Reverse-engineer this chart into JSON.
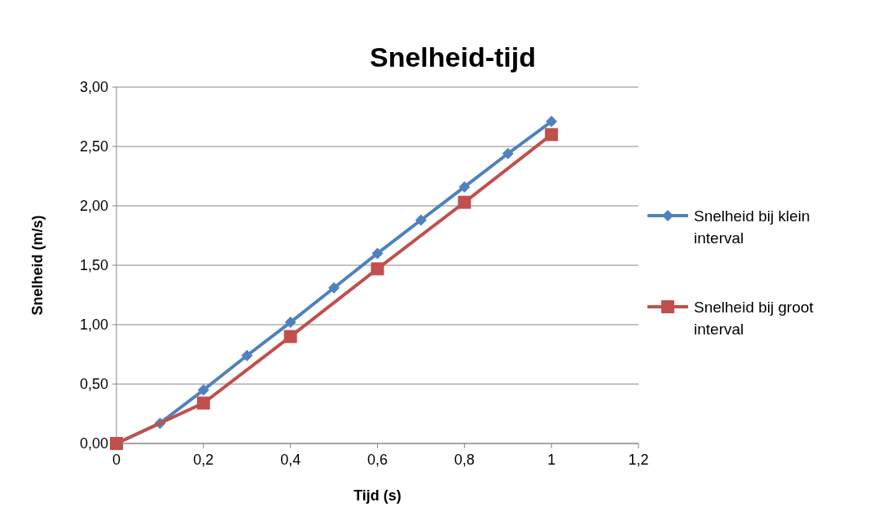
{
  "chart_data": {
    "type": "line",
    "title": "Snelheid-tijd",
    "xlabel": "Tijd (s)",
    "ylabel": "Snelheid (m/s)",
    "xlim": [
      0,
      1.2
    ],
    "xticks": [
      0,
      {
        "value": 0.2,
        "label": "0,2"
      },
      {
        "value": 0.4,
        "label": "0,4"
      },
      {
        "value": 0.6,
        "label": "0,6"
      },
      {
        "value": 0.8,
        "label": "0,8"
      },
      1,
      {
        "value": 1.2,
        "label": "1,2"
      }
    ],
    "ylim": [
      0,
      3
    ],
    "yticks": [
      {
        "value": 0,
        "label": "0,00"
      },
      {
        "value": 0.5,
        "label": "0,50"
      },
      {
        "value": 1,
        "label": "1,00"
      },
      {
        "value": 1.5,
        "label": "1,50"
      },
      {
        "value": 2,
        "label": "2,00"
      },
      {
        "value": 2.5,
        "label": "2,50"
      },
      {
        "value": 3,
        "label": "3,00"
      }
    ],
    "grid": "y",
    "legend": "right",
    "series": [
      {
        "name": "Snelheid bij klein interval",
        "color": "#4f81bd",
        "marker": "diamond",
        "x": [
          0,
          0.1,
          0.2,
          0.3,
          0.4,
          0.5,
          0.6,
          0.7,
          0.8,
          0.9,
          1
        ],
        "values": [
          0,
          0.17,
          0.45,
          0.74,
          1.02,
          1.31,
          1.6,
          1.88,
          2.16,
          2.44,
          2.71
        ]
      },
      {
        "name": "Snelheid bij groot interval",
        "color": "#c0504d",
        "marker": "square",
        "x": [
          0,
          0.2,
          0.4,
          0.6,
          0.8,
          1
        ],
        "values": [
          0,
          0.34,
          0.9,
          1.47,
          2.03,
          2.6
        ]
      }
    ]
  }
}
